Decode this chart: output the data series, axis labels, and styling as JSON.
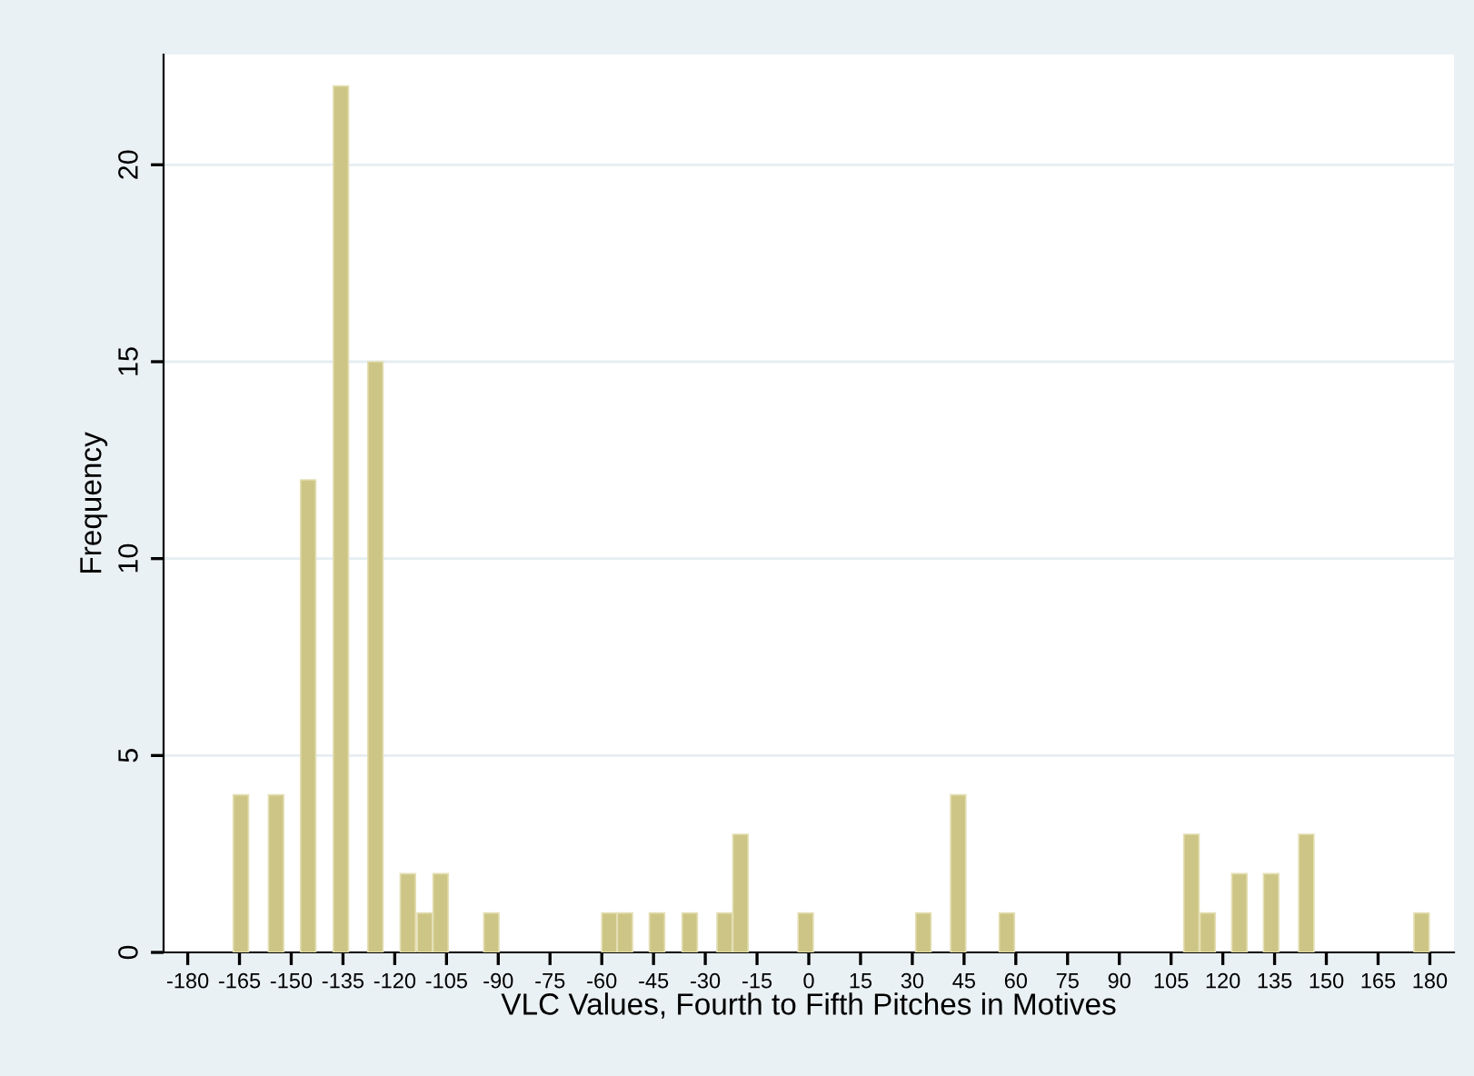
{
  "chart_data": {
    "type": "bar",
    "xlabel": "VLC Values, Fourth to Fifth Pitches in Motives",
    "ylabel": "Frequency",
    "color": "#cdc585",
    "x": [
      -164.6,
      -154.4,
      -145.1,
      -135.6,
      -125.6,
      -116.2,
      -111.3,
      -106.7,
      -92,
      -57.8,
      -53.3,
      -44,
      -34.5,
      -24.4,
      -19.8,
      -0.9,
      33.2,
      43.3,
      57.4,
      110.9,
      115.6,
      124.8,
      134,
      144.2,
      177.6
    ],
    "values": [
      4,
      4,
      12,
      22,
      15,
      2,
      1,
      2,
      1,
      1,
      1,
      1,
      1,
      1,
      3,
      1,
      1,
      4,
      1,
      3,
      1,
      2,
      2,
      3,
      1
    ],
    "xlim": [
      -187,
      187
    ],
    "xticks": [
      -180,
      -165,
      -150,
      -135,
      -120,
      -105,
      -90,
      -75,
      -60,
      -45,
      -30,
      -15,
      0,
      15,
      30,
      45,
      60,
      75,
      90,
      105,
      120,
      135,
      150,
      165,
      180
    ],
    "ylim": [
      0,
      22.8
    ],
    "yticks": [
      0,
      5,
      10,
      15,
      20
    ],
    "grid": "y",
    "legend": false
  }
}
